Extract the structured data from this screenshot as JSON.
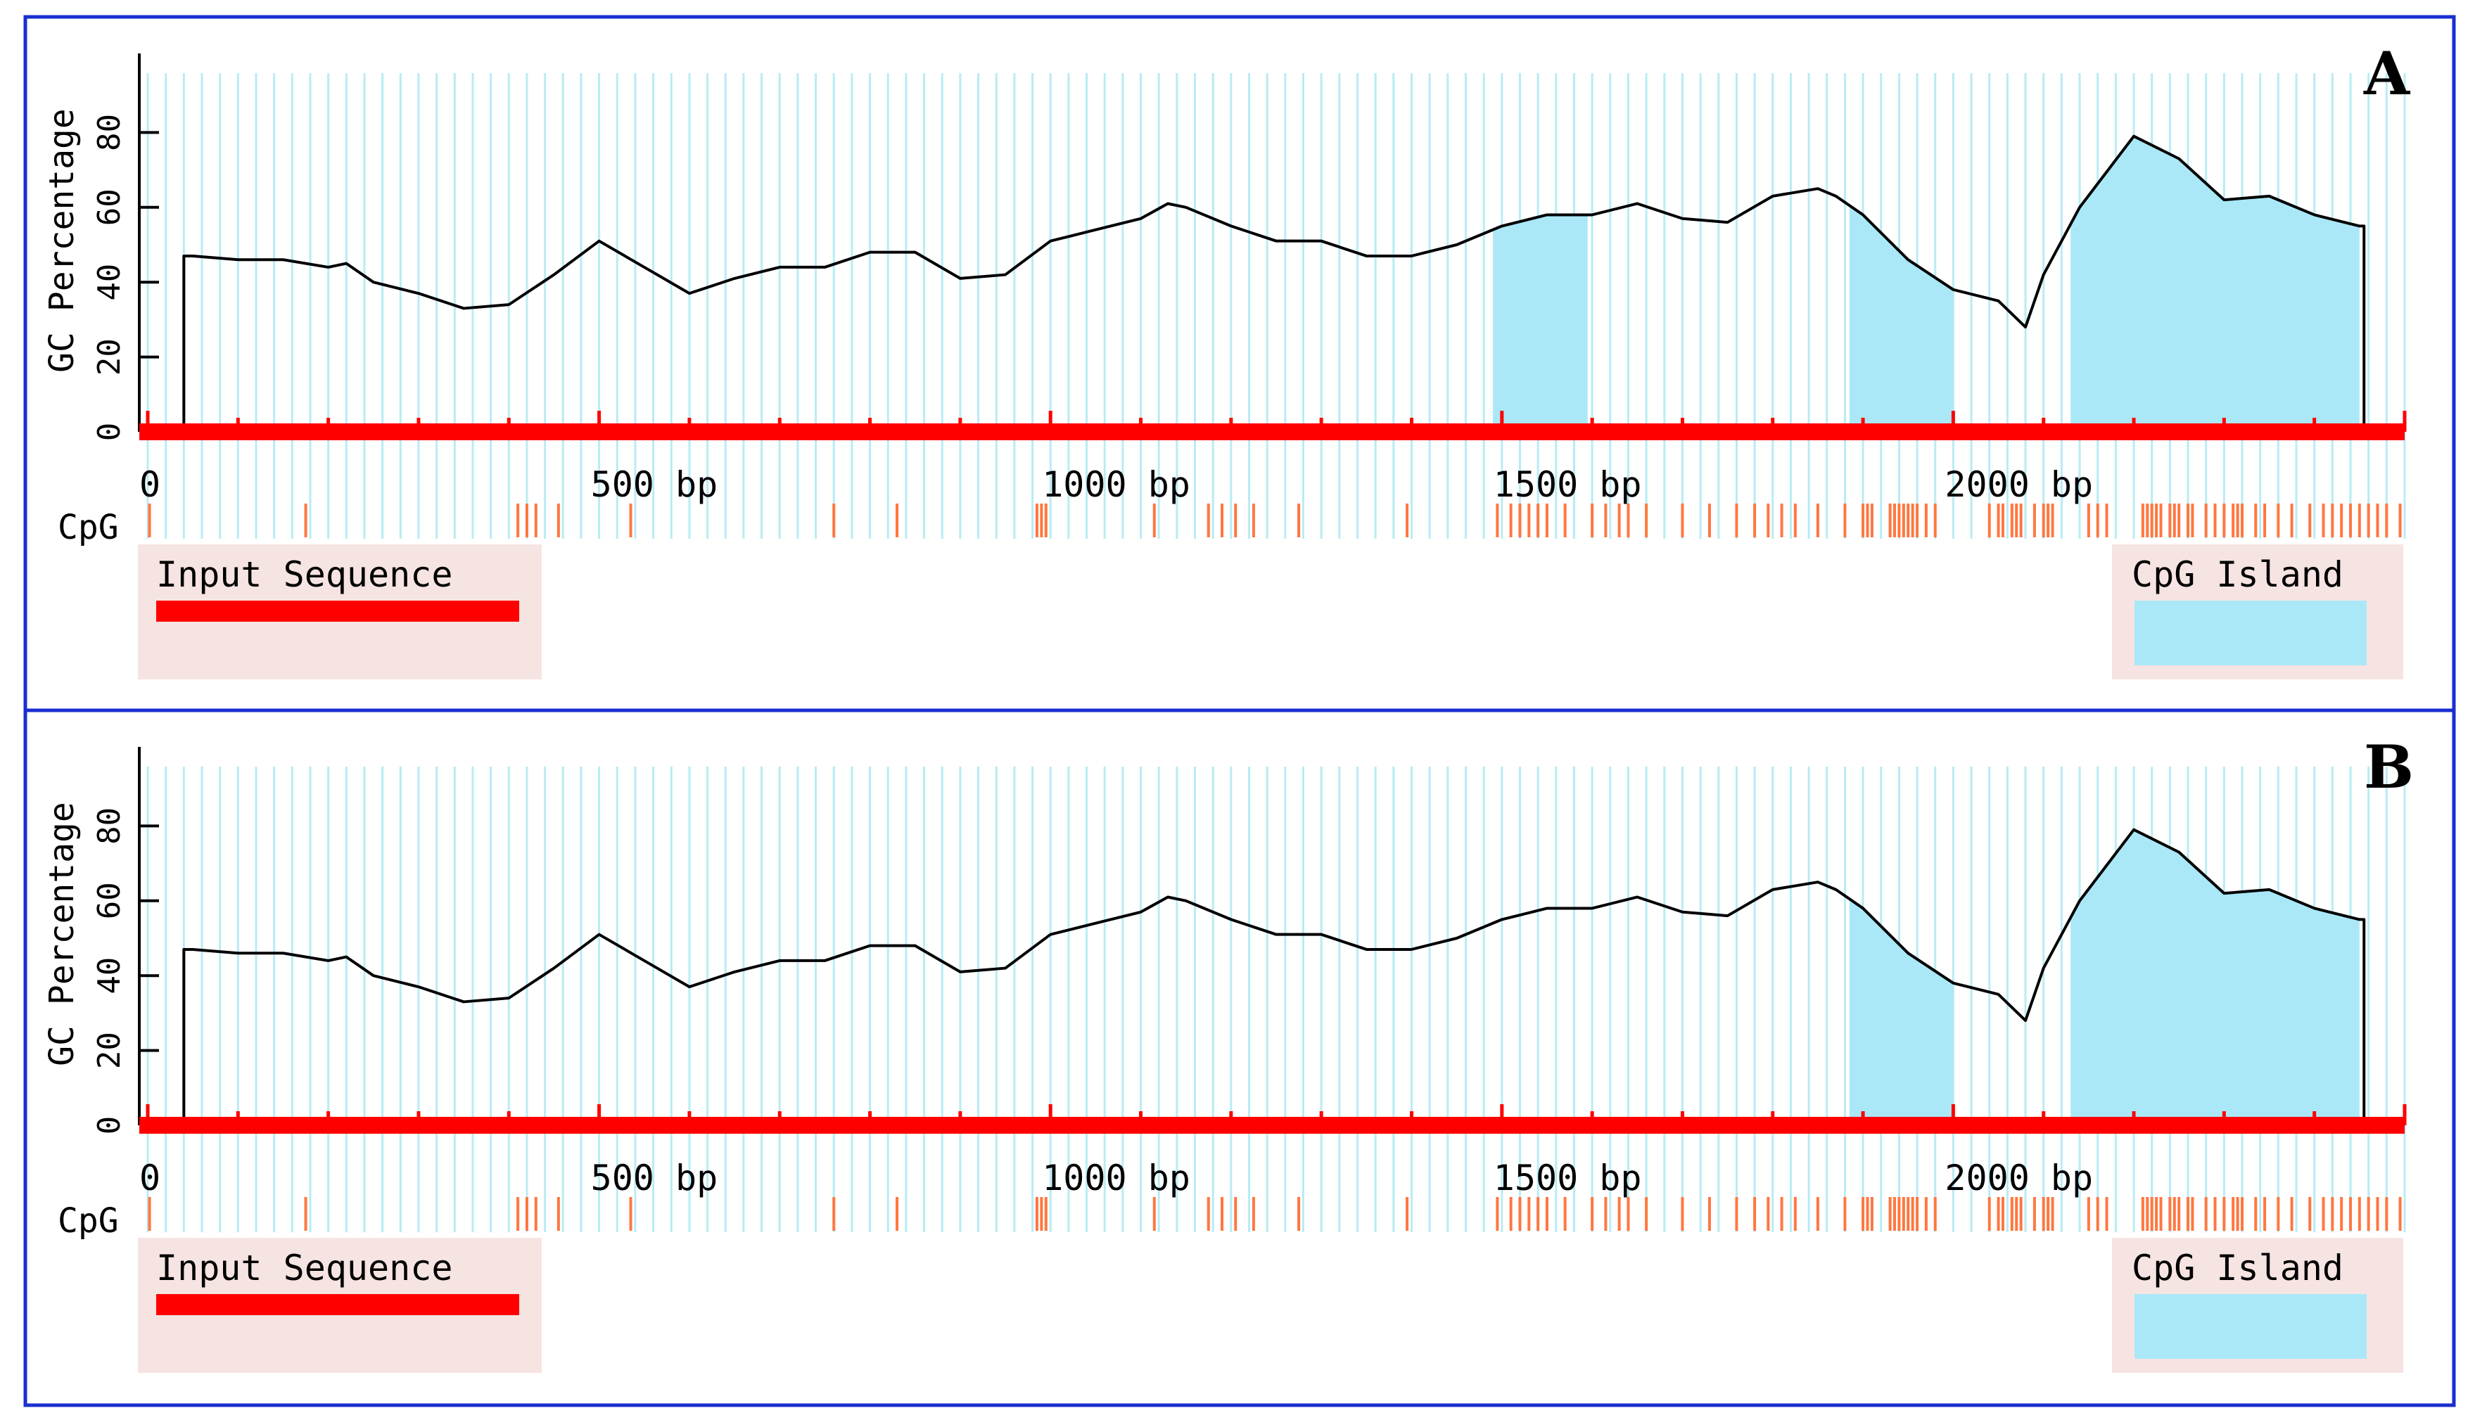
{
  "colors": {
    "frame": "#1a2fd0",
    "grid": "#b8ecf4",
    "island_fill": "#aae8f8",
    "input_bar": "#ff0000",
    "cpg_tick": "#ff7740",
    "legend_bg": "#f6e4e2",
    "gc_line": "#000000"
  },
  "chart_data": [
    {
      "type": "line",
      "panel_label": "A",
      "ylabel": "GC Percentage",
      "ylim": [
        0,
        100
      ],
      "yticks": [
        0,
        20,
        40,
        60,
        80
      ],
      "xlim": [
        0,
        2500
      ],
      "x_tick_labels": [
        {
          "value": 0,
          "label": "0"
        },
        {
          "value": 500,
          "label": "500 bp"
        },
        {
          "value": 1000,
          "label": "1000 bp"
        },
        {
          "value": 1500,
          "label": "1500 bp"
        },
        {
          "value": 2000,
          "label": "2000 bp"
        }
      ],
      "x_minor_step": 100,
      "grid": true,
      "cpg_label": "CpG",
      "sequence_extent": [
        40,
        2455
      ],
      "gc_profile": {
        "x": [
          40,
          50,
          100,
          150,
          200,
          220,
          250,
          300,
          350,
          400,
          450,
          500,
          550,
          600,
          650,
          700,
          750,
          800,
          850,
          900,
          950,
          1000,
          1050,
          1100,
          1130,
          1150,
          1200,
          1250,
          1300,
          1350,
          1400,
          1450,
          1500,
          1550,
          1600,
          1650,
          1700,
          1750,
          1800,
          1850,
          1870,
          1900,
          1950,
          2000,
          2050,
          2080,
          2100,
          2140,
          2200,
          2250,
          2300,
          2350,
          2400,
          2450,
          2455
        ],
        "y": [
          47,
          47,
          46,
          46,
          44,
          45,
          40,
          37,
          33,
          34,
          42,
          51,
          44,
          37,
          41,
          44,
          44,
          48,
          48,
          41,
          42,
          51,
          54,
          57,
          61,
          60,
          55,
          51,
          51,
          47,
          47,
          50,
          55,
          58,
          58,
          61,
          57,
          56,
          63,
          65,
          63,
          58,
          46,
          38,
          35,
          28,
          42,
          60,
          79,
          73,
          62,
          63,
          58,
          55,
          55
        ]
      },
      "cpg_islands": [
        [
          1490,
          1595
        ],
        [
          1885,
          2000
        ],
        [
          2130,
          2450
        ]
      ],
      "cpg_sites": [
        2,
        175,
        410,
        420,
        430,
        455,
        535,
        760,
        830,
        985,
        990,
        995,
        1115,
        1175,
        1190,
        1205,
        1225,
        1275,
        1395,
        1495,
        1510,
        1520,
        1530,
        1540,
        1550,
        1570,
        1600,
        1615,
        1630,
        1640,
        1660,
        1700,
        1730,
        1760,
        1780,
        1795,
        1810,
        1825,
        1850,
        1880,
        1900,
        1905,
        1910,
        1930,
        1935,
        1940,
        1945,
        1950,
        1955,
        1960,
        1970,
        1980,
        2040,
        2050,
        2055,
        2065,
        2070,
        2075,
        2090,
        2100,
        2105,
        2110,
        2150,
        2160,
        2170,
        2210,
        2215,
        2220,
        2225,
        2230,
        2240,
        2245,
        2250,
        2260,
        2265,
        2280,
        2290,
        2300,
        2310,
        2315,
        2320,
        2335,
        2345,
        2360,
        2375,
        2395,
        2410,
        2420,
        2430,
        2440,
        2450,
        2460,
        2470,
        2480,
        2495
      ],
      "legend": [
        {
          "label": "Input Sequence",
          "color": "#ff0000"
        },
        {
          "label": "CpG Island",
          "color": "#aae8f8"
        }
      ]
    },
    {
      "type": "line",
      "panel_label": "B",
      "ylabel": "GC Percentage",
      "ylim": [
        0,
        100
      ],
      "yticks": [
        0,
        20,
        40,
        60,
        80
      ],
      "xlim": [
        0,
        2500
      ],
      "x_tick_labels": [
        {
          "value": 0,
          "label": "0"
        },
        {
          "value": 500,
          "label": "500 bp"
        },
        {
          "value": 1000,
          "label": "1000 bp"
        },
        {
          "value": 1500,
          "label": "1500 bp"
        },
        {
          "value": 2000,
          "label": "2000 bp"
        }
      ],
      "x_minor_step": 100,
      "grid": true,
      "cpg_label": "CpG",
      "sequence_extent": [
        40,
        2455
      ],
      "gc_profile": {
        "x": [
          40,
          50,
          100,
          150,
          200,
          220,
          250,
          300,
          350,
          400,
          450,
          500,
          550,
          600,
          650,
          700,
          750,
          800,
          850,
          900,
          950,
          1000,
          1050,
          1100,
          1130,
          1150,
          1200,
          1250,
          1300,
          1350,
          1400,
          1450,
          1500,
          1550,
          1600,
          1650,
          1700,
          1750,
          1800,
          1850,
          1870,
          1900,
          1950,
          2000,
          2050,
          2080,
          2100,
          2140,
          2200,
          2250,
          2300,
          2350,
          2400,
          2450,
          2455
        ],
        "y": [
          47,
          47,
          46,
          46,
          44,
          45,
          40,
          37,
          33,
          34,
          42,
          51,
          44,
          37,
          41,
          44,
          44,
          48,
          48,
          41,
          42,
          51,
          54,
          57,
          61,
          60,
          55,
          51,
          51,
          47,
          47,
          50,
          55,
          58,
          58,
          61,
          57,
          56,
          63,
          65,
          63,
          58,
          46,
          38,
          35,
          28,
          42,
          60,
          79,
          73,
          62,
          63,
          58,
          55,
          55
        ]
      },
      "cpg_islands": [
        [
          1885,
          2000
        ],
        [
          2130,
          2450
        ]
      ],
      "cpg_sites": [
        2,
        175,
        410,
        420,
        430,
        455,
        535,
        760,
        830,
        985,
        990,
        995,
        1115,
        1175,
        1190,
        1205,
        1225,
        1275,
        1395,
        1495,
        1510,
        1520,
        1530,
        1540,
        1550,
        1570,
        1600,
        1615,
        1630,
        1640,
        1660,
        1700,
        1730,
        1760,
        1780,
        1795,
        1810,
        1825,
        1850,
        1880,
        1900,
        1905,
        1910,
        1930,
        1935,
        1940,
        1945,
        1950,
        1955,
        1960,
        1970,
        1980,
        2040,
        2050,
        2055,
        2065,
        2070,
        2075,
        2090,
        2100,
        2105,
        2110,
        2150,
        2160,
        2170,
        2210,
        2215,
        2220,
        2225,
        2230,
        2240,
        2245,
        2250,
        2260,
        2265,
        2280,
        2290,
        2300,
        2310,
        2315,
        2320,
        2335,
        2345,
        2360,
        2375,
        2395,
        2410,
        2420,
        2430,
        2440,
        2450,
        2460,
        2470,
        2480,
        2495
      ],
      "legend": [
        {
          "label": "Input Sequence",
          "color": "#ff0000"
        },
        {
          "label": "CpG Island",
          "color": "#aae8f8"
        }
      ]
    }
  ]
}
